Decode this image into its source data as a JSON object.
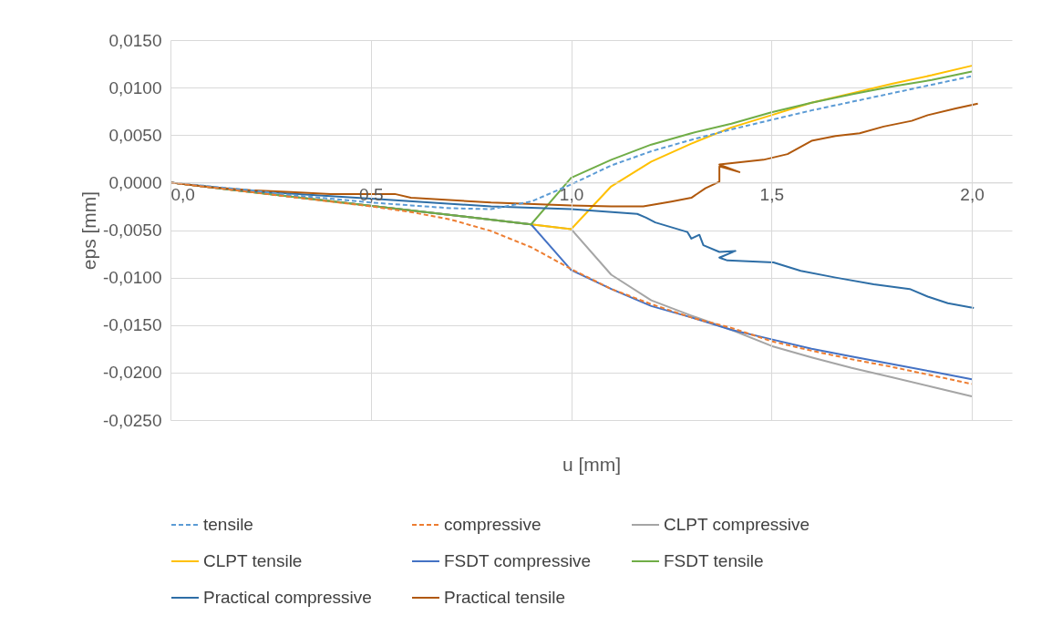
{
  "chart_data": {
    "type": "line",
    "xlabel": "u [mm]",
    "ylabel": "eps [mm]",
    "xlim": [
      0,
      2.1
    ],
    "xticks": [
      {
        "value": 0,
        "label": "0,0"
      },
      {
        "value": 0.5,
        "label": "0,5"
      },
      {
        "value": 1.0,
        "label": "1,0"
      },
      {
        "value": 1.5,
        "label": "1,5"
      },
      {
        "value": 2.0,
        "label": "2,0"
      }
    ],
    "ylim": [
      -0.025,
      0.015
    ],
    "yticks": [
      {
        "value": -0.025,
        "label": "-0,0250"
      },
      {
        "value": -0.02,
        "label": "-0,0200"
      },
      {
        "value": -0.015,
        "label": "-0,0150"
      },
      {
        "value": -0.01,
        "label": "-0,0100"
      },
      {
        "value": -0.005,
        "label": "-0,0050"
      },
      {
        "value": 0,
        "label": "0,0000"
      },
      {
        "value": 0.005,
        "label": "0,0050"
      },
      {
        "value": 0.01,
        "label": "0,0100"
      },
      {
        "value": 0.015,
        "label": "0,0150"
      }
    ],
    "grid": true,
    "legend": "bottom",
    "marker": "none",
    "series": [
      {
        "name": "tensile",
        "color": "#5b9bd5",
        "line_style": "dashed",
        "x": [
          0,
          0.1,
          0.2,
          0.3,
          0.4,
          0.5,
          0.6,
          0.7,
          0.8,
          0.9,
          1.0,
          1.1,
          1.2,
          1.3,
          1.4,
          1.5,
          1.6,
          1.7,
          1.8,
          1.9,
          2.0
        ],
        "values": [
          0,
          -0.0004,
          -0.0008,
          -0.0013,
          -0.0017,
          -0.0021,
          -0.0024,
          -0.0027,
          -0.0028,
          -0.002,
          -0.0002,
          0.0018,
          0.0033,
          0.0045,
          0.0056,
          0.0066,
          0.0076,
          0.0085,
          0.0094,
          0.0103,
          0.0112
        ]
      },
      {
        "name": "compressive",
        "color": "#ed7d31",
        "line_style": "dashed",
        "x": [
          0,
          0.1,
          0.2,
          0.3,
          0.4,
          0.5,
          0.6,
          0.7,
          0.8,
          0.9,
          1.0,
          1.1,
          1.2,
          1.3,
          1.4,
          1.5,
          1.6,
          1.7,
          1.8,
          1.9,
          2.0
        ],
        "values": [
          0,
          -0.0005,
          -0.001,
          -0.0015,
          -0.002,
          -0.0025,
          -0.0031,
          -0.0039,
          -0.0051,
          -0.0068,
          -0.0091,
          -0.0112,
          -0.0128,
          -0.0142,
          -0.0153,
          -0.0167,
          -0.0177,
          -0.0186,
          -0.0194,
          -0.0203,
          -0.0212
        ]
      },
      {
        "name": "CLPT compressive",
        "color": "#a5a5a5",
        "line_style": "solid",
        "x": [
          0,
          0.9,
          1.0,
          1.1,
          1.2,
          1.3,
          1.4,
          1.5,
          1.6,
          1.7,
          1.8,
          1.9,
          2.0
        ],
        "values": [
          0,
          -0.0044,
          -0.0049,
          -0.0097,
          -0.0124,
          -0.014,
          -0.0155,
          -0.0172,
          -0.0184,
          -0.0195,
          -0.0205,
          -0.0215,
          -0.0225
        ]
      },
      {
        "name": "CLPT tensile",
        "color": "#ffc000",
        "line_style": "solid",
        "x": [
          0,
          0.9,
          1.0,
          1.1,
          1.2,
          1.3,
          1.4,
          1.5,
          1.6,
          1.7,
          1.8,
          1.9,
          2.0
        ],
        "values": [
          0,
          -0.0044,
          -0.0049,
          -0.0004,
          0.0022,
          0.0041,
          0.0058,
          0.0071,
          0.0084,
          0.0094,
          0.0104,
          0.0113,
          0.0123
        ]
      },
      {
        "name": "FSDT compressive",
        "color": "#4472c4",
        "line_style": "solid",
        "x": [
          0,
          0.9,
          1.0,
          1.1,
          1.2,
          1.3,
          1.4,
          1.5,
          1.6,
          1.7,
          1.8,
          1.9,
          2.0
        ],
        "values": [
          0,
          -0.0044,
          -0.0092,
          -0.0112,
          -0.013,
          -0.0142,
          -0.0155,
          -0.0165,
          -0.0175,
          -0.0183,
          -0.0191,
          -0.0199,
          -0.0207
        ]
      },
      {
        "name": "FSDT tensile",
        "color": "#70ad47",
        "line_style": "solid",
        "x": [
          0,
          0.9,
          1.0,
          1.1,
          1.2,
          1.3,
          1.4,
          1.5,
          1.6,
          1.7,
          1.8,
          1.9,
          2.0
        ],
        "values": [
          0,
          -0.0044,
          0.0005,
          0.0024,
          0.004,
          0.0052,
          0.0062,
          0.0074,
          0.0084,
          0.0093,
          0.0101,
          0.0108,
          0.0117
        ]
      },
      {
        "name": "Practical compressive",
        "color": "#2e6ea6",
        "line_style": "solid",
        "x": [
          0,
          0.2,
          0.5,
          0.8,
          1.0,
          1.165,
          1.187,
          1.21,
          1.29,
          1.3,
          1.32,
          1.33,
          1.37,
          1.41,
          1.37,
          1.39,
          1.505,
          1.573,
          1.66,
          1.755,
          1.845,
          1.89,
          1.94,
          2.005
        ],
        "values": [
          0,
          -0.0009,
          -0.0017,
          -0.0025,
          -0.0028,
          -0.0033,
          -0.0037,
          -0.0042,
          -0.0052,
          -0.0059,
          -0.0055,
          -0.0066,
          -0.0073,
          -0.0072,
          -0.0079,
          -0.0082,
          -0.0084,
          -0.0093,
          -0.01,
          -0.0107,
          -0.0112,
          -0.012,
          -0.0127,
          -0.0132
        ]
      },
      {
        "name": "Practical tensile",
        "color": "#b0580c",
        "line_style": "solid",
        "x": [
          0,
          0.1,
          0.2,
          0.3,
          0.4,
          0.56,
          0.6,
          0.8,
          1.0,
          1.1,
          1.18,
          1.25,
          1.3,
          1.335,
          1.37,
          1.37,
          1.42,
          1.37,
          1.48,
          1.54,
          1.6,
          1.66,
          1.72,
          1.78,
          1.85,
          1.89,
          1.96,
          2.015
        ],
        "values": [
          0,
          -0.0005,
          -0.0008,
          -0.001,
          -0.0012,
          -0.0012,
          -0.0016,
          -0.0021,
          -0.0024,
          -0.0025,
          -0.0025,
          -0.002,
          -0.0016,
          -0.0006,
          0.0001,
          0.0017,
          0.0011,
          0.0019,
          0.0024,
          0.003,
          0.0044,
          0.0049,
          0.0052,
          0.0059,
          0.0065,
          0.0071,
          0.0078,
          0.0083
        ]
      }
    ]
  }
}
